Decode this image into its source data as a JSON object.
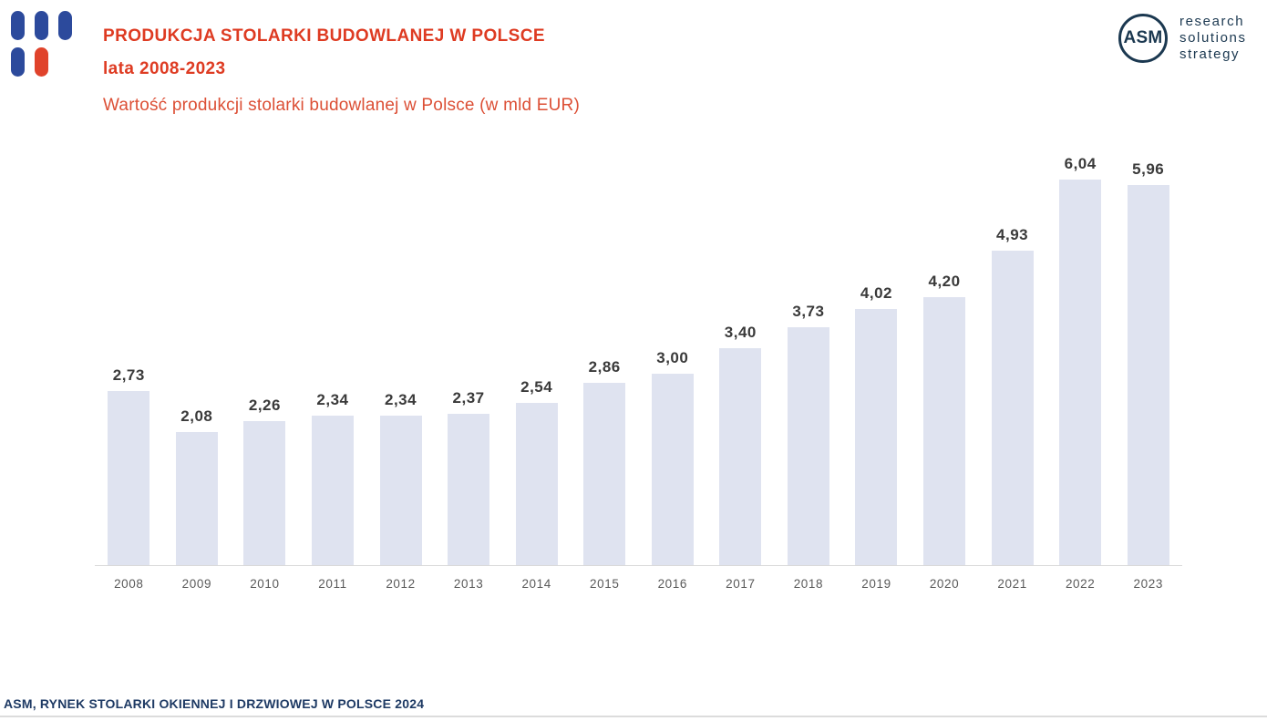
{
  "header": {
    "title_line1": "PRODUKCJA STOLARKI BUDOWLANEJ W POLSCE",
    "title_line2": "lata 2008-2023",
    "subtitle": "Wartość produkcji stolarki budowlanej w Polsce (w mld EUR)",
    "logo_mark_colors": {
      "blue": "#2c4a9c",
      "red": "#e0432b"
    },
    "asm_logo": {
      "circle_text": "ASM",
      "tagline_lines": [
        "research",
        "solutions",
        "strategy"
      ]
    }
  },
  "chart_data": {
    "type": "bar",
    "title": "Wartość produkcji stolarki budowlanej w Polsce (w mld EUR)",
    "unit": "mld EUR",
    "categories": [
      "2008",
      "2009",
      "2010",
      "2011",
      "2012",
      "2013",
      "2014",
      "2015",
      "2016",
      "2017",
      "2018",
      "2019",
      "2020",
      "2021",
      "2022",
      "2023"
    ],
    "values": [
      2.73,
      2.08,
      2.26,
      2.34,
      2.34,
      2.37,
      2.54,
      2.86,
      3.0,
      3.4,
      3.73,
      4.02,
      4.2,
      4.93,
      6.04,
      5.96
    ],
    "value_labels": [
      "2,73",
      "2,08",
      "2,26",
      "2,34",
      "2,34",
      "2,37",
      "2,54",
      "2,86",
      "3,00",
      "3,40",
      "3,73",
      "4,02",
      "4,20",
      "4,93",
      "6,04",
      "5,96"
    ],
    "xlabel": "",
    "ylabel": "",
    "ylim": [
      0,
      6.5
    ],
    "grid": false,
    "legend": false,
    "bar_color": "#dfe3f0",
    "value_label_color": "#3a3a3a",
    "tick_label_color": "#5a5a5a",
    "axis_line_color": "#d9d9d9"
  },
  "footer": {
    "source": "ASM, RYNEK STOLARKI OKIENNEJ I DRZWIOWEJ W POLSCE 2024"
  },
  "colors": {
    "title_red": "#de3b22",
    "subtitle_red": "#dc4f35",
    "navy": "#1b3850",
    "footer_navy": "#1e3a64"
  }
}
